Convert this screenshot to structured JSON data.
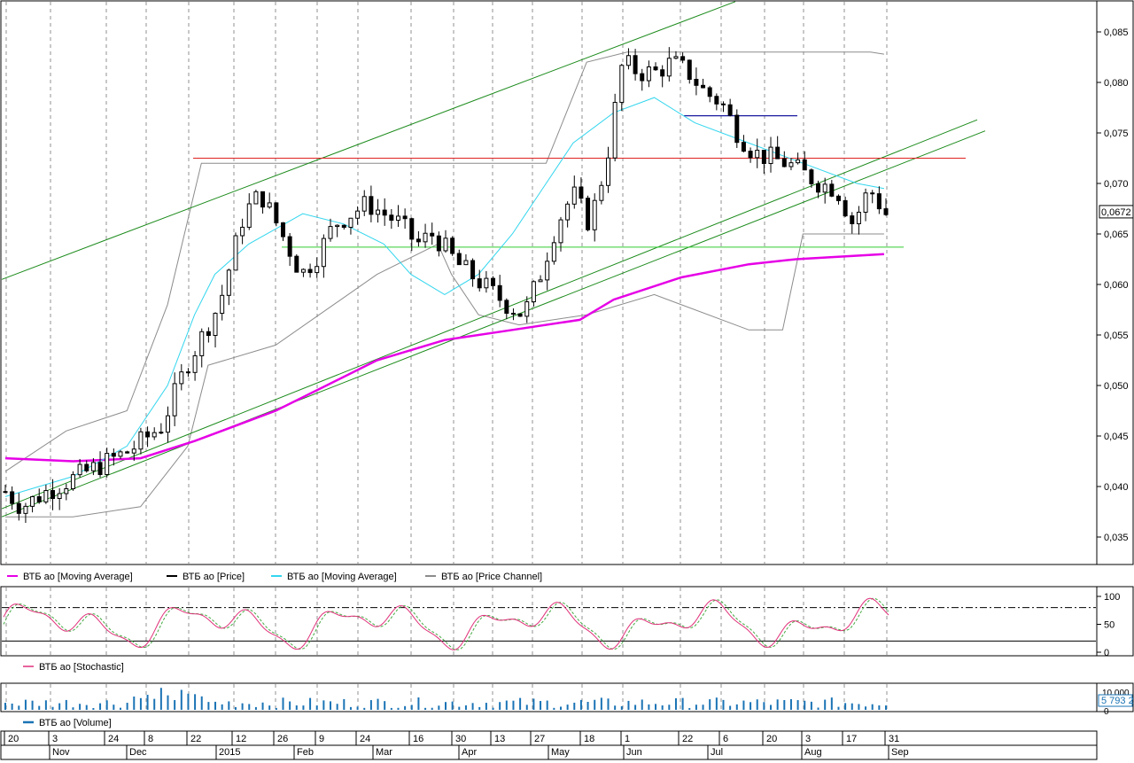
{
  "colors": {
    "ma_long": "#e600e6",
    "ma_short": "#33d6ee",
    "price": "#000000",
    "channel": "#8c8c8c",
    "trend": "#1a8a1a",
    "resistance": "#e02020",
    "support": "#33cc33",
    "level_blue": "#1a1aa0",
    "stoch_main": "#e0307a",
    "stoch_signal": "#44aa44",
    "volume": "#1a73b5"
  },
  "price_pane": {
    "y_ticks": [
      "0,085",
      "0,080",
      "0,075",
      "0,070",
      "0,065",
      "0,060",
      "0,055",
      "0,050",
      "0,045",
      "0,040",
      "0,035"
    ],
    "current_price_label": "0,0672",
    "legend": [
      {
        "label": "ВТБ ао [Moving Average]",
        "color": "#e600e6"
      },
      {
        "label": "ВТБ ао [Price]",
        "color": "#000000"
      },
      {
        "label": "ВТБ ао [Moving Average]",
        "color": "#33d6ee"
      },
      {
        "label": "ВТБ ао [Price Channel]",
        "color": "#8c8c8c"
      }
    ]
  },
  "stoch_pane": {
    "y_ticks": [
      "100",
      "50",
      "0"
    ],
    "legend": [
      {
        "label": "ВТБ ао [Stochastic]",
        "color": "#e0307a"
      }
    ]
  },
  "volume_pane": {
    "y_ticks": [
      "10 000",
      "5 793 2",
      "0"
    ],
    "legend": [
      {
        "label": "ВТБ ао [Volume]",
        "color": "#1a73b5"
      }
    ]
  },
  "time_axis": {
    "days": [
      "20",
      "3",
      "24",
      "8",
      "22",
      "12",
      "26",
      "9",
      "24",
      "16",
      "30",
      "13",
      "27",
      "18",
      "1",
      "22",
      "6",
      "20",
      "3",
      "17",
      "31"
    ],
    "months": [
      "Nov",
      "Dec",
      "2015",
      "Feb",
      "Mar",
      "Apr",
      "May",
      "Jun",
      "Jul",
      "Aug",
      "Sep"
    ]
  },
  "chart_data": {
    "type": "line",
    "y_range": [
      0.032,
      0.088
    ],
    "stoch_range": [
      0,
      100
    ],
    "stoch_levels": [
      80,
      20
    ],
    "price_anchors": [
      [
        0,
        0.0395
      ],
      [
        2,
        0.038
      ],
      [
        5,
        0.0395
      ],
      [
        10,
        0.0415
      ],
      [
        15,
        0.0435
      ],
      [
        19,
        0.046
      ],
      [
        22,
        0.052
      ],
      [
        26,
        0.058
      ],
      [
        29,
        0.067
      ],
      [
        31,
        0.069
      ],
      [
        33,
        0.066
      ],
      [
        36,
        0.061
      ],
      [
        38,
        0.063
      ],
      [
        40,
        0.066
      ],
      [
        42,
        0.067
      ],
      [
        44,
        0.068
      ],
      [
        46,
        0.067
      ],
      [
        48,
        0.066
      ],
      [
        50,
        0.064
      ],
      [
        52,
        0.065
      ],
      [
        55,
        0.062
      ],
      [
        58,
        0.06
      ],
      [
        61,
        0.058
      ],
      [
        63,
        0.057
      ],
      [
        65,
        0.061
      ],
      [
        67,
        0.066
      ],
      [
        69,
        0.069
      ],
      [
        71,
        0.066
      ],
      [
        73,
        0.072
      ],
      [
        75,
        0.082
      ],
      [
        77,
        0.081
      ],
      [
        79,
        0.081
      ],
      [
        81,
        0.082
      ],
      [
        83,
        0.081
      ],
      [
        85,
        0.079
      ],
      [
        87,
        0.078
      ],
      [
        89,
        0.075
      ],
      [
        91,
        0.073
      ],
      [
        93,
        0.0725
      ],
      [
        95,
        0.072
      ],
      [
        97,
        0.071
      ],
      [
        99,
        0.07
      ],
      [
        101,
        0.0695
      ],
      [
        103,
        0.066
      ],
      [
        105,
        0.0695
      ],
      [
        107,
        0.067
      ]
    ],
    "ma_long": [
      [
        0,
        0.0428
      ],
      [
        10,
        0.0425
      ],
      [
        20,
        0.0428
      ],
      [
        28,
        0.0445
      ],
      [
        40,
        0.0475
      ],
      [
        55,
        0.0525
      ],
      [
        65,
        0.0545
      ],
      [
        75,
        0.0555
      ],
      [
        85,
        0.0565
      ],
      [
        90,
        0.0585
      ],
      [
        100,
        0.0607
      ],
      [
        110,
        0.062
      ],
      [
        117,
        0.0625
      ],
      [
        130,
        0.063
      ]
    ],
    "ma_short": [
      [
        0,
        0.039
      ],
      [
        10,
        0.041
      ],
      [
        18,
        0.044
      ],
      [
        24,
        0.05
      ],
      [
        28,
        0.057
      ],
      [
        31,
        0.061
      ],
      [
        36,
        0.064
      ],
      [
        44,
        0.067
      ],
      [
        50,
        0.066
      ],
      [
        56,
        0.064
      ],
      [
        60,
        0.061
      ],
      [
        65,
        0.059
      ],
      [
        70,
        0.061
      ],
      [
        75,
        0.065
      ],
      [
        80,
        0.07
      ],
      [
        84,
        0.074
      ],
      [
        90,
        0.077
      ],
      [
        96,
        0.0785
      ],
      [
        102,
        0.076
      ],
      [
        110,
        0.074
      ],
      [
        118,
        0.072
      ],
      [
        126,
        0.07
      ],
      [
        130,
        0.0695
      ]
    ],
    "channel_upper": [
      [
        0,
        0.0415
      ],
      [
        9,
        0.0455
      ],
      [
        18,
        0.0475
      ],
      [
        24,
        0.058
      ],
      [
        29,
        0.072
      ],
      [
        45,
        0.072
      ],
      [
        55,
        0.072
      ],
      [
        76,
        0.072
      ],
      [
        80,
        0.072
      ],
      [
        86,
        0.082
      ],
      [
        92,
        0.083
      ],
      [
        100,
        0.083
      ],
      [
        121,
        0.083
      ],
      [
        128,
        0.083
      ],
      [
        130,
        0.0828
      ]
    ],
    "channel_lower": [
      [
        0,
        0.037
      ],
      [
        10,
        0.037
      ],
      [
        20,
        0.038
      ],
      [
        27,
        0.044
      ],
      [
        30,
        0.052
      ],
      [
        40,
        0.054
      ],
      [
        55,
        0.061
      ],
      [
        64,
        0.064
      ],
      [
        66,
        0.061
      ],
      [
        70,
        0.057
      ],
      [
        76,
        0.056
      ],
      [
        86,
        0.057
      ],
      [
        96,
        0.059
      ],
      [
        110,
        0.0555
      ],
      [
        115,
        0.0555
      ],
      [
        118,
        0.065
      ],
      [
        126,
        0.065
      ],
      [
        130,
        0.065
      ]
    ],
    "levels": {
      "resistance": 0.0725,
      "support": 0.0637,
      "blue": 0.0767
    }
  }
}
